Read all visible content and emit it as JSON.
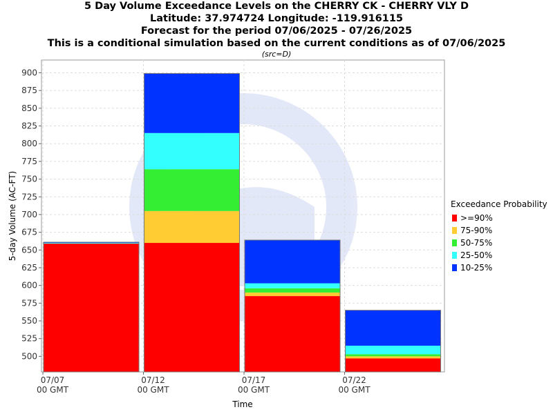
{
  "titles": {
    "line1": "5 Day Volume Exceedance Levels on the CHERRY CK - CHERRY VLY D",
    "line2": "Latitude: 37.974724 Longitude: -119.916115",
    "line3": "Forecast for the period 07/06/2025 - 07/26/2025",
    "line4": "This is a conditional simulation based on the current conditions as of 07/06/2025",
    "src": "(src=D)"
  },
  "legend": {
    "title": "Exceedance Probability",
    "items": [
      {
        "label": ">=90%",
        "color": "#ff0000"
      },
      {
        "label": "75-90%",
        "color": "#ffcc33"
      },
      {
        "label": "50-75%",
        "color": "#33ee33"
      },
      {
        "label": "25-50%",
        "color": "#33ffff"
      },
      {
        "label": "10-25%",
        "color": "#0033ff"
      }
    ]
  },
  "chart_data": {
    "type": "bar",
    "stacked": true,
    "title": "5 Day Volume Exceedance Levels on the CHERRY CK - CHERRY VLY D",
    "xlabel": "Time",
    "ylabel": "5-day Volume (AC-FT)",
    "ylim": [
      478,
      918
    ],
    "yticks": [
      500,
      525,
      550,
      575,
      600,
      625,
      650,
      675,
      700,
      725,
      750,
      775,
      800,
      825,
      850,
      875,
      900
    ],
    "xticks": [
      {
        "line1": "07/07",
        "line2": "00 GMT"
      },
      {
        "line1": "07/12",
        "line2": "00 GMT"
      },
      {
        "line1": "07/17",
        "line2": "00 GMT"
      },
      {
        "line1": "07/22",
        "line2": "00 GMT"
      }
    ],
    "grid": true,
    "legend_position": "right",
    "bars": [
      {
        "period": "07/07 - 07/12",
        "levels": [
          659,
          659,
          659,
          660,
          661
        ]
      },
      {
        "period": "07/12 - 07/17",
        "levels": [
          660,
          705,
          764,
          815,
          899
        ]
      },
      {
        "period": "07/17 - 07/22",
        "levels": [
          585,
          590,
          596,
          603,
          664
        ]
      },
      {
        "period": "07/22 - 07/27",
        "levels": [
          497,
          500,
          503,
          515,
          565
        ]
      }
    ],
    "series": [
      {
        "name": ">=90%",
        "color": "#ff0000"
      },
      {
        "name": "75-90%",
        "color": "#ffcc33"
      },
      {
        "name": "50-75%",
        "color": "#33ee33"
      },
      {
        "name": "25-50%",
        "color": "#33ffff"
      },
      {
        "name": "10-25%",
        "color": "#0033ff"
      }
    ]
  }
}
